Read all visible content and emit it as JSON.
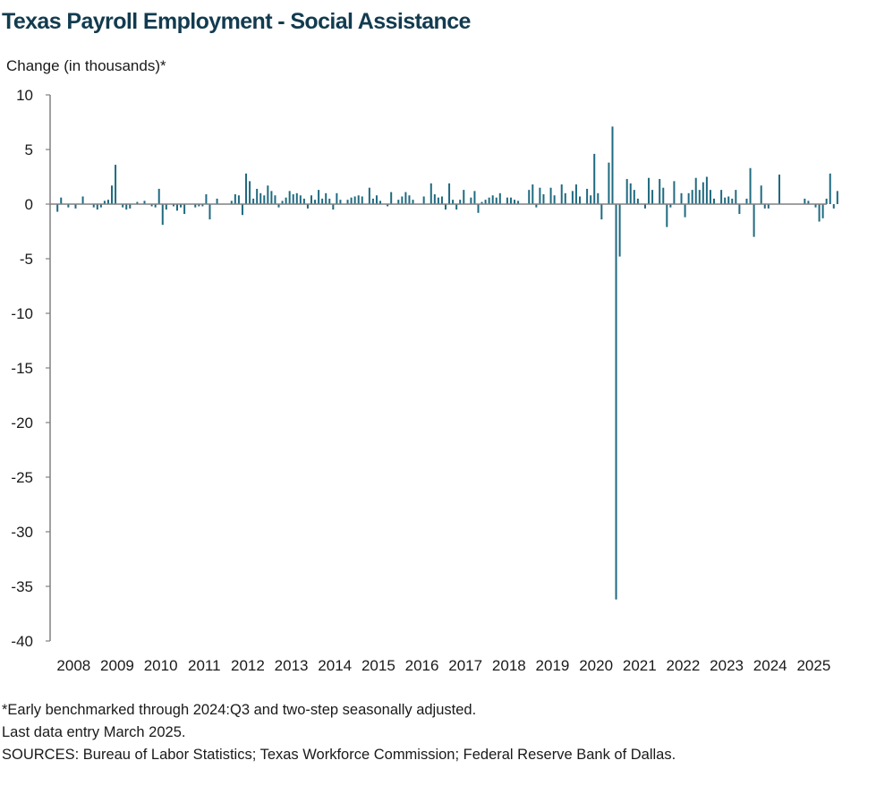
{
  "title": "Texas Payroll Employment - Social Assistance",
  "footnotes": {
    "note": "*Early benchmarked through 2024:Q3 and two-step seasonally adjusted.",
    "last_data": "Last data entry March 2025.",
    "sources": "SOURCES:  Bureau of Labor Statistics; Texas Workforce Commission;  Federal Reserve Bank of Dallas."
  },
  "colors": {
    "bars": "#1f6a80",
    "title": "#123b4f",
    "axis": "#808080"
  },
  "chart_data": {
    "type": "bar",
    "title": "Texas Payroll Employment - Social Assistance",
    "ylabel": "Change (in thousands)*",
    "xlabel": "",
    "ylim": [
      -40,
      10
    ],
    "yticks": [
      10,
      5,
      0,
      -5,
      -10,
      -15,
      -20,
      -25,
      -30,
      -35,
      -40
    ],
    "x_tick_labels": [
      "2008",
      "2009",
      "2010",
      "2011",
      "2012",
      "2013",
      "2014",
      "2015",
      "2016",
      "2017",
      "2018",
      "2019",
      "2020",
      "2021",
      "2022",
      "2023",
      "2024",
      "2025"
    ],
    "grid": false,
    "legend": "none",
    "frequency": "monthly",
    "start": "2008-01",
    "end": "2025-03",
    "series": [
      {
        "values": [
          -0.7,
          0.6,
          0.0,
          -0.3,
          0.0,
          -0.4,
          0.0,
          0.7,
          0.0,
          0.0,
          -0.3,
          -0.5,
          -0.3,
          0.3,
          0.4,
          1.7,
          3.6,
          0.0,
          -0.3,
          -0.5,
          -0.4,
          0.0,
          0.2,
          0.0,
          0.3,
          0.0,
          -0.2,
          -0.3,
          1.4,
          -1.9,
          -0.5,
          0.0,
          -0.2,
          -0.6,
          -0.3,
          -0.9,
          0.0,
          0.0,
          -0.3,
          -0.2,
          -0.2,
          0.9,
          -1.4,
          0.0,
          0.5,
          0.0,
          0.0,
          0.0,
          0.3,
          0.9,
          0.8,
          -1.0,
          2.8,
          2.1,
          0.5,
          1.4,
          1.0,
          0.8,
          1.7,
          1.2,
          0.8,
          -0.3,
          0.3,
          0.6,
          1.2,
          0.9,
          1.0,
          0.8,
          0.5,
          -0.4,
          0.8,
          0.4,
          1.3,
          0.5,
          1.0,
          0.5,
          -0.5,
          1.0,
          0.4,
          0.0,
          0.4,
          0.6,
          0.7,
          0.8,
          0.7,
          0.0,
          1.5,
          0.5,
          0.8,
          0.3,
          0.0,
          -0.2,
          1.1,
          0.0,
          0.4,
          0.7,
          1.1,
          0.8,
          0.4,
          0.0,
          0.0,
          0.7,
          0.0,
          1.9,
          0.9,
          0.6,
          0.7,
          -0.5,
          1.9,
          0.4,
          -0.5,
          0.4,
          1.3,
          0.0,
          0.6,
          1.2,
          -0.8,
          0.2,
          0.4,
          0.6,
          0.8,
          0.6,
          1.0,
          0.0,
          0.6,
          0.6,
          0.4,
          0.3,
          0.0,
          0.0,
          1.3,
          1.8,
          -0.3,
          1.5,
          0.9,
          0.0,
          1.5,
          0.8,
          0.0,
          1.8,
          1.0,
          0.0,
          1.2,
          1.8,
          0.7,
          0.0,
          1.4,
          0.8,
          4.6,
          1.0,
          -1.4,
          0.0,
          3.8,
          7.1,
          -36.2,
          -4.8,
          0.0,
          2.3,
          1.9,
          1.3,
          0.5,
          0.0,
          -0.4,
          2.4,
          1.3,
          0.0,
          2.3,
          1.5,
          -2.1,
          -0.3,
          2.1,
          0.0,
          1.0,
          -1.2,
          1.0,
          1.3,
          2.4,
          1.3,
          2.0,
          2.5,
          1.3,
          0.5,
          0.0,
          1.3,
          0.6,
          0.7,
          0.5,
          1.3,
          -0.9,
          0.0,
          0.5,
          3.3,
          -3.0,
          0.0,
          1.7,
          -0.4,
          -0.4,
          0.0,
          0.0,
          2.7,
          0.0,
          0.0,
          0.0,
          0.0,
          0.0,
          0.0,
          0.5,
          0.3,
          0.0,
          -0.3,
          -1.6,
          -1.3,
          0.5,
          2.8,
          -0.4,
          1.2
        ]
      }
    ]
  }
}
